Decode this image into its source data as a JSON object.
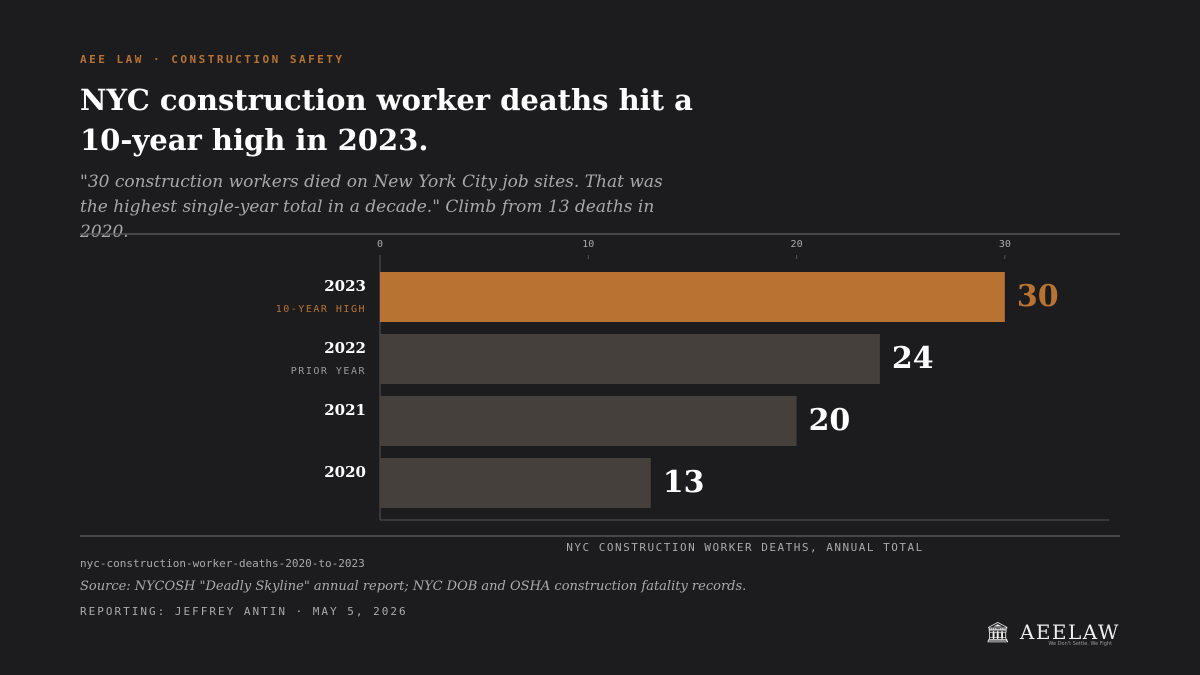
{
  "kicker": "AEE LAW · CONSTRUCTION SAFETY",
  "chart_data": {
    "type": "bar",
    "orientation": "horizontal",
    "title": "NYC construction worker deaths hit a 10-year high in 2023.",
    "subtitle": "\"30 construction workers died on New York City job sites. That was the highest single-year total in a decade.\" Climb from 13 deaths in 2020.",
    "categories": [
      "2023",
      "2022",
      "2021",
      "2020"
    ],
    "annotations": [
      "10-YEAR HIGH",
      "PRIOR YEAR",
      null,
      null
    ],
    "values": [
      30,
      24,
      20,
      13
    ],
    "colors": [
      "#b87333",
      "#45403b",
      "#45403b",
      "#45403b"
    ],
    "value_label_colors": [
      "#b87333",
      "#ffffff",
      "#ffffff",
      "#ffffff"
    ],
    "annotation_colors": [
      "#b87333",
      "#9a9a9a",
      null,
      null
    ],
    "xlim": [
      0,
      35
    ],
    "xticks": [
      0,
      10,
      20,
      30
    ],
    "x_label": "NYC CONSTRUCTION WORKER DEATHS, ANNUAL TOTAL"
  },
  "footer": {
    "slug": "nyc-construction-worker-deaths-2020-to-2023",
    "source": "Source: NYCOSH \"Deadly Skyline\" annual report; NYC DOB and OSHA construction fatality records.",
    "byline": "REPORTING: JEFFREY ANTIN · MAY 5, 2026"
  },
  "logo": {
    "name": "AEELAW",
    "tagline": "We Don't Settle. We Fight"
  }
}
